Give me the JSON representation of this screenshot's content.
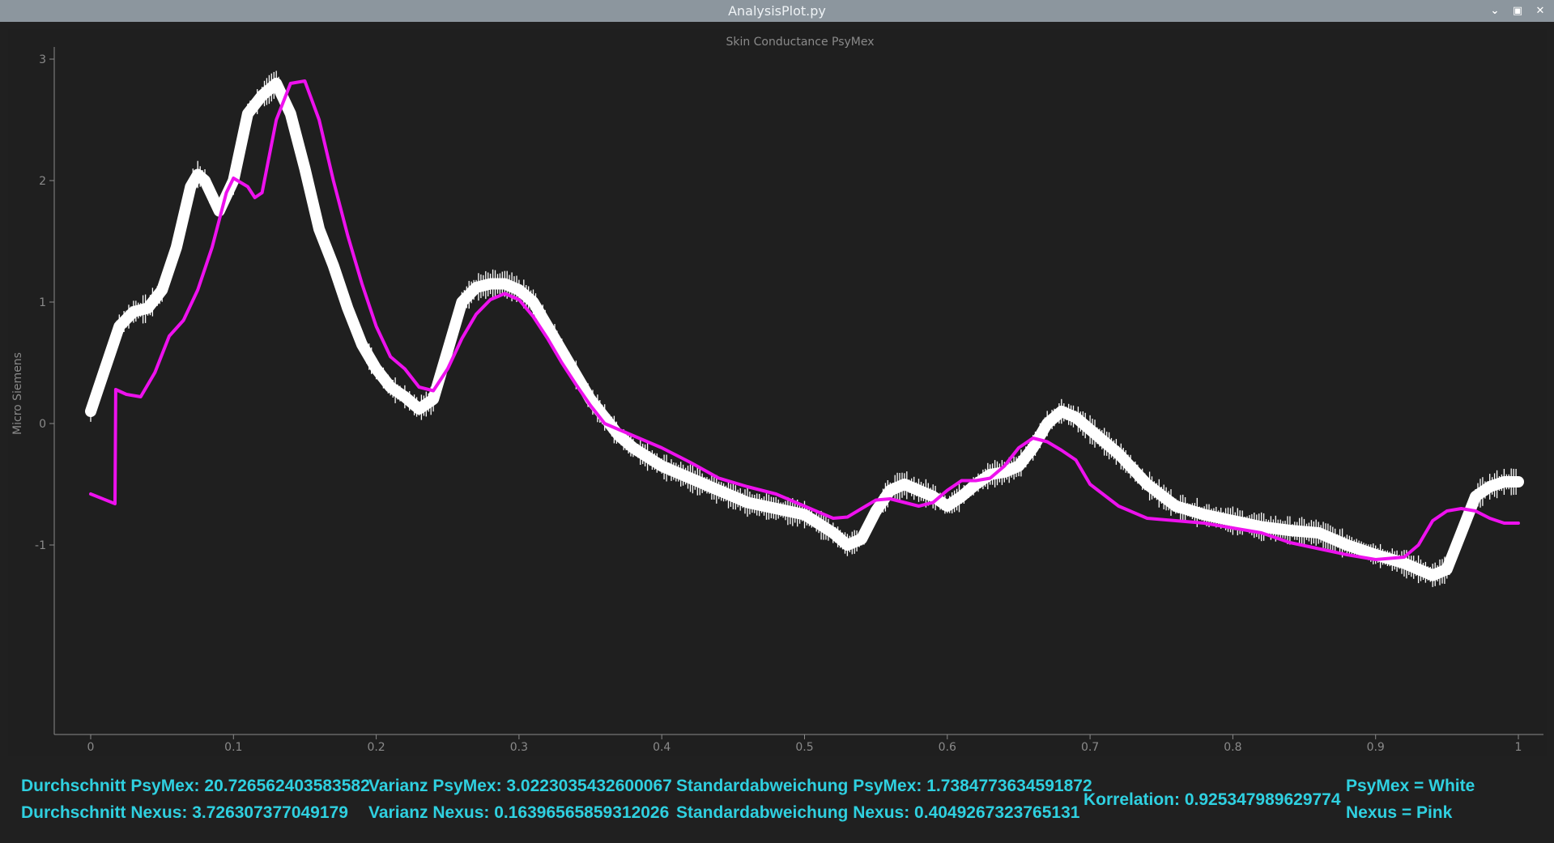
{
  "window": {
    "title": "AnalysisPlot.py",
    "controls": [
      "minimize-icon",
      "maximize-icon",
      "close-icon"
    ]
  },
  "stats": {
    "mean_psymex": "Durchschnitt PsyMex: 20.726562403583582",
    "mean_nexus": "Durchschnitt Nexus: 3.726307377049179",
    "var_psymex": "Varianz PsyMex: 3.0223035432600067",
    "var_nexus": "Varianz Nexus: 0.16396565859312026",
    "std_psymex": "Standardabweichung PsyMex: 1.7384773634591872",
    "std_nexus": "Standardabweichung Nexus: 0.4049267323765131",
    "correlation": "Korrelation: 0.925347989629774",
    "legend_white": "PsyMex = White",
    "legend_pink": "Nexus = Pink"
  },
  "colors": {
    "psymex": "#ffffff",
    "nexus": "#ee11ee",
    "stats_text": "#2fd0e0",
    "axis": "#888888"
  },
  "chart_data": {
    "type": "line",
    "title": "Skin Conductance PsyMex",
    "xlabel": "",
    "ylabel": "Micro Siemens",
    "xlim": [
      0,
      1
    ],
    "ylim": [
      -1.45,
      3.05
    ],
    "x_ticks": [
      "0",
      "0.1",
      "0.2",
      "0.3",
      "0.4",
      "0.5",
      "0.6",
      "0.7",
      "0.8",
      "0.9",
      "1"
    ],
    "y_ticks": [
      "-1",
      "0",
      "1",
      "2",
      "3"
    ],
    "grid": false,
    "series": [
      {
        "color": "#ffffff",
        "style": "thick-noisy",
        "x": [
          0,
          0.01,
          0.02,
          0.03,
          0.04,
          0.05,
          0.06,
          0.07,
          0.075,
          0.08,
          0.09,
          0.1,
          0.11,
          0.12,
          0.13,
          0.14,
          0.15,
          0.16,
          0.17,
          0.18,
          0.19,
          0.2,
          0.21,
          0.22,
          0.23,
          0.24,
          0.25,
          0.26,
          0.27,
          0.28,
          0.29,
          0.3,
          0.31,
          0.32,
          0.33,
          0.34,
          0.35,
          0.36,
          0.37,
          0.38,
          0.4,
          0.42,
          0.44,
          0.46,
          0.48,
          0.5,
          0.52,
          0.53,
          0.54,
          0.55,
          0.56,
          0.57,
          0.58,
          0.59,
          0.6,
          0.61,
          0.62,
          0.63,
          0.64,
          0.65,
          0.66,
          0.67,
          0.68,
          0.69,
          0.7,
          0.72,
          0.74,
          0.76,
          0.78,
          0.8,
          0.82,
          0.84,
          0.86,
          0.88,
          0.9,
          0.92,
          0.93,
          0.94,
          0.95,
          0.96,
          0.97,
          0.98,
          0.99,
          1.0
        ],
        "y": [
          0.1,
          0.45,
          0.8,
          0.92,
          0.95,
          1.1,
          1.45,
          1.95,
          2.05,
          2.0,
          1.75,
          2.0,
          2.55,
          2.7,
          2.8,
          2.55,
          2.1,
          1.6,
          1.3,
          0.95,
          0.65,
          0.45,
          0.3,
          0.22,
          0.12,
          0.2,
          0.6,
          1.0,
          1.12,
          1.15,
          1.15,
          1.1,
          1.0,
          0.8,
          0.6,
          0.4,
          0.2,
          0.05,
          -0.1,
          -0.2,
          -0.35,
          -0.45,
          -0.55,
          -0.65,
          -0.7,
          -0.75,
          -0.9,
          -1.0,
          -0.95,
          -0.72,
          -0.55,
          -0.5,
          -0.55,
          -0.6,
          -0.68,
          -0.6,
          -0.5,
          -0.42,
          -0.4,
          -0.35,
          -0.2,
          0.0,
          0.1,
          0.05,
          -0.05,
          -0.25,
          -0.5,
          -0.68,
          -0.75,
          -0.8,
          -0.85,
          -0.88,
          -0.9,
          -1.0,
          -1.08,
          -1.15,
          -1.2,
          -1.25,
          -1.2,
          -0.9,
          -0.6,
          -0.52,
          -0.48,
          -0.48
        ]
      },
      {
        "color": "#ee11ee",
        "style": "line",
        "x": [
          0,
          0.017,
          0.0175,
          0.025,
          0.035,
          0.045,
          0.055,
          0.065,
          0.075,
          0.085,
          0.095,
          0.1,
          0.11,
          0.115,
          0.12,
          0.13,
          0.14,
          0.15,
          0.16,
          0.17,
          0.18,
          0.19,
          0.2,
          0.21,
          0.22,
          0.23,
          0.24,
          0.25,
          0.26,
          0.27,
          0.28,
          0.29,
          0.3,
          0.31,
          0.32,
          0.33,
          0.34,
          0.35,
          0.36,
          0.37,
          0.38,
          0.4,
          0.42,
          0.44,
          0.46,
          0.48,
          0.5,
          0.52,
          0.53,
          0.54,
          0.55,
          0.56,
          0.57,
          0.58,
          0.59,
          0.6,
          0.61,
          0.62,
          0.63,
          0.64,
          0.65,
          0.66,
          0.67,
          0.68,
          0.69,
          0.7,
          0.72,
          0.74,
          0.76,
          0.78,
          0.8,
          0.82,
          0.84,
          0.86,
          0.88,
          0.9,
          0.92,
          0.93,
          0.94,
          0.95,
          0.96,
          0.97,
          0.98,
          0.99,
          1.0
        ],
        "y": [
          -0.58,
          -0.66,
          0.28,
          0.24,
          0.22,
          0.42,
          0.72,
          0.85,
          1.1,
          1.45,
          1.9,
          2.02,
          1.95,
          1.86,
          1.9,
          2.5,
          2.8,
          2.82,
          2.5,
          2.0,
          1.55,
          1.15,
          0.8,
          0.55,
          0.45,
          0.3,
          0.27,
          0.45,
          0.7,
          0.9,
          1.02,
          1.07,
          1.02,
          0.88,
          0.7,
          0.5,
          0.32,
          0.15,
          0.0,
          -0.05,
          -0.1,
          -0.2,
          -0.32,
          -0.45,
          -0.52,
          -0.58,
          -0.68,
          -0.78,
          -0.77,
          -0.7,
          -0.63,
          -0.62,
          -0.65,
          -0.68,
          -0.65,
          -0.55,
          -0.47,
          -0.47,
          -0.45,
          -0.35,
          -0.2,
          -0.12,
          -0.15,
          -0.22,
          -0.3,
          -0.5,
          -0.68,
          -0.78,
          -0.8,
          -0.82,
          -0.86,
          -0.9,
          -0.98,
          -1.03,
          -1.08,
          -1.12,
          -1.1,
          -1.0,
          -0.8,
          -0.72,
          -0.7,
          -0.72,
          -0.78,
          -0.82,
          -0.82
        ]
      }
    ]
  }
}
